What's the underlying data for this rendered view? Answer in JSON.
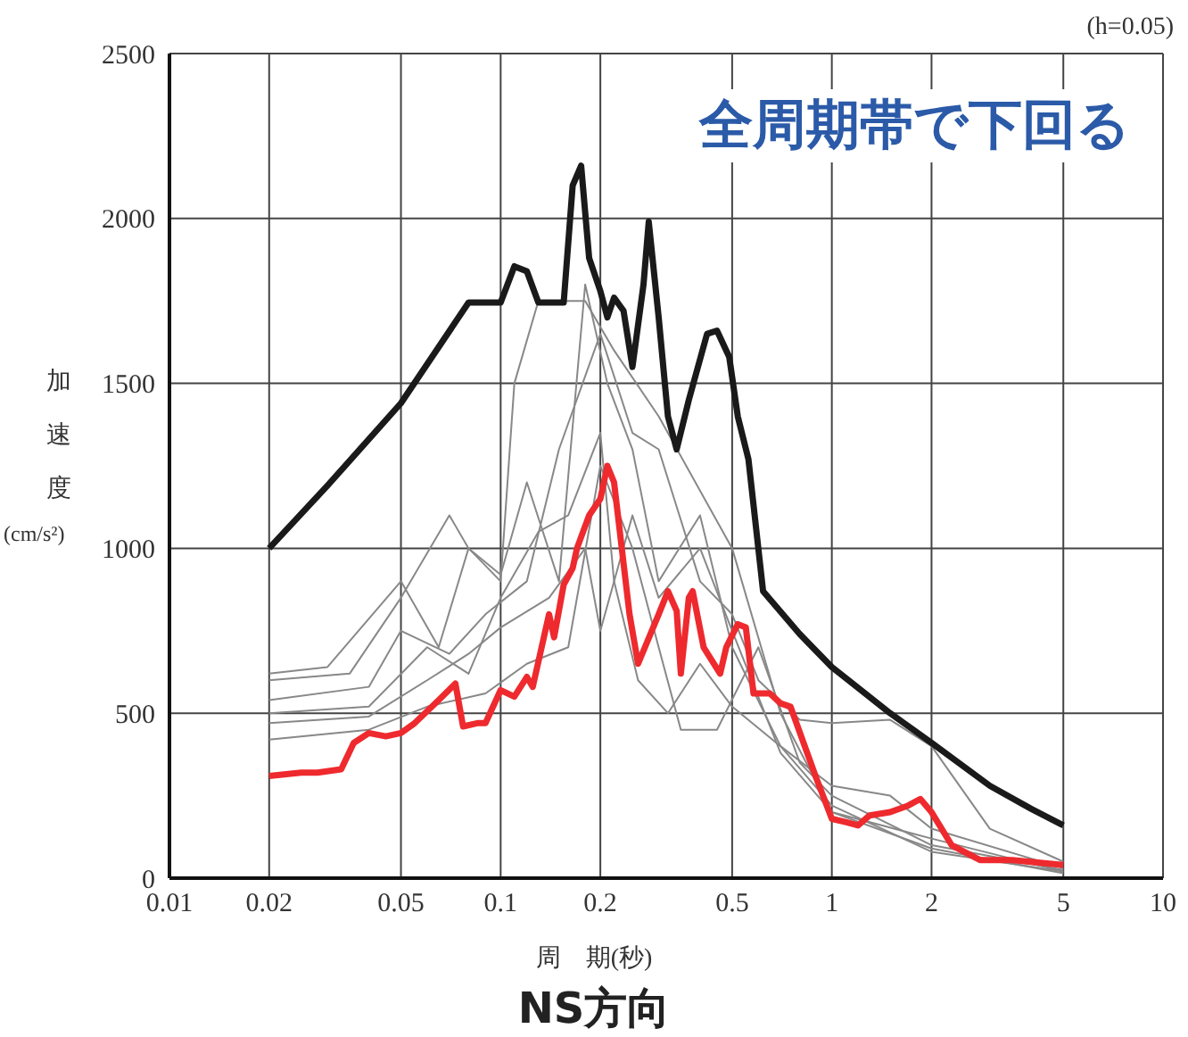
{
  "chart_data": {
    "type": "line",
    "title": "NS方向",
    "xlabel": "周　期(秒)",
    "ylabel": "加速度(cm/s²)",
    "annotations": [
      "(h=0.05)",
      "全周期帯で下回る"
    ],
    "log": "x",
    "grid": true,
    "marker": "none",
    "line_style": "solid",
    "xlim": [
      0.01,
      10
    ],
    "xticks": [
      0.01,
      0.02,
      0.05,
      0.1,
      0.2,
      0.5,
      1,
      2,
      5,
      10
    ],
    "ylim": [
      0,
      2500
    ],
    "yticks": [
      0,
      500,
      1000,
      1500,
      2000,
      2500
    ],
    "series": [
      {
        "color": "#888888",
        "x": [
          0.02,
          0.03,
          0.05,
          0.065,
          0.08,
          0.1,
          0.11,
          0.13,
          0.18,
          0.22,
          0.3,
          0.5,
          0.7,
          1,
          2,
          5
        ],
        "values": [
          620,
          640,
          900,
          700,
          1000,
          900,
          1500,
          1750,
          1750,
          1600,
          1400,
          1000,
          500,
          200,
          120,
          20
        ]
      },
      {
        "color": "#888888",
        "x": [
          0.02,
          0.035,
          0.05,
          0.07,
          0.08,
          0.1,
          0.12,
          0.15,
          0.18,
          0.21,
          0.25,
          0.3,
          0.4,
          0.5,
          0.7,
          1,
          1.5,
          2,
          5
        ],
        "values": [
          600,
          620,
          850,
          1100,
          1000,
          920,
          1200,
          900,
          1800,
          1500,
          1300,
          900,
          1100,
          700,
          400,
          280,
          250,
          150,
          30
        ]
      },
      {
        "color": "#888888",
        "x": [
          0.02,
          0.04,
          0.05,
          0.07,
          0.09,
          0.12,
          0.15,
          0.2,
          0.25,
          0.3,
          0.4,
          0.5,
          0.6,
          0.8,
          1,
          1.5,
          2,
          3,
          5
        ],
        "values": [
          540,
          580,
          750,
          680,
          800,
          900,
          1300,
          1650,
          1350,
          1300,
          900,
          800,
          600,
          480,
          470,
          480,
          400,
          150,
          50
        ]
      },
      {
        "color": "#888888",
        "x": [
          0.02,
          0.04,
          0.06,
          0.08,
          0.1,
          0.13,
          0.16,
          0.2,
          0.22,
          0.26,
          0.32,
          0.4,
          0.5,
          0.7,
          1,
          2,
          5
        ],
        "values": [
          500,
          520,
          700,
          620,
          850,
          1050,
          1100,
          1350,
          900,
          600,
          500,
          650,
          520,
          400,
          220,
          80,
          20
        ]
      },
      {
        "color": "#888888",
        "x": [
          0.02,
          0.04,
          0.06,
          0.08,
          0.1,
          0.14,
          0.18,
          0.2,
          0.25,
          0.3,
          0.4,
          0.5,
          0.7,
          1,
          2,
          5
        ],
        "values": [
          470,
          490,
          600,
          680,
          760,
          850,
          1000,
          750,
          1100,
          850,
          1000,
          750,
          380,
          200,
          90,
          15
        ]
      },
      {
        "color": "#888888",
        "x": [
          0.02,
          0.04,
          0.06,
          0.09,
          0.12,
          0.16,
          0.2,
          0.25,
          0.3,
          0.35,
          0.45,
          0.6,
          0.8,
          1,
          2,
          5
        ],
        "values": [
          420,
          450,
          520,
          560,
          650,
          700,
          1250,
          1000,
          700,
          450,
          450,
          700,
          350,
          250,
          100,
          25
        ]
      },
      {
        "color": "#1a1a1a",
        "x": [
          0.02,
          0.03,
          0.05,
          0.08,
          0.1,
          0.11,
          0.12,
          0.13,
          0.155,
          0.165,
          0.175,
          0.185,
          0.2,
          0.21,
          0.22,
          0.235,
          0.25,
          0.27,
          0.28,
          0.3,
          0.32,
          0.34,
          0.37,
          0.42,
          0.45,
          0.49,
          0.52,
          0.56,
          0.62,
          0.8,
          1,
          1.5,
          2,
          3,
          4,
          5
        ],
        "values": [
          1000,
          1190,
          1440,
          1745,
          1745,
          1855,
          1840,
          1745,
          1745,
          2100,
          2160,
          1880,
          1780,
          1700,
          1760,
          1720,
          1550,
          1800,
          1990,
          1700,
          1400,
          1300,
          1450,
          1650,
          1660,
          1580,
          1400,
          1270,
          870,
          740,
          640,
          500,
          410,
          280,
          210,
          160
        ]
      },
      {
        "color": "#ee2a2e",
        "x": [
          0.02,
          0.025,
          0.028,
          0.033,
          0.036,
          0.04,
          0.045,
          0.05,
          0.055,
          0.065,
          0.073,
          0.077,
          0.085,
          0.09,
          0.1,
          0.11,
          0.12,
          0.125,
          0.14,
          0.145,
          0.155,
          0.165,
          0.17,
          0.185,
          0.2,
          0.21,
          0.22,
          0.245,
          0.26,
          0.3,
          0.32,
          0.34,
          0.35,
          0.37,
          0.38,
          0.41,
          0.46,
          0.48,
          0.52,
          0.55,
          0.58,
          0.65,
          0.7,
          0.75,
          0.9,
          1,
          1.1,
          1.2,
          1.3,
          1.5,
          1.7,
          1.85,
          2,
          2.3,
          2.8,
          3.5,
          5
        ],
        "values": [
          310,
          320,
          320,
          330,
          410,
          440,
          430,
          440,
          470,
          540,
          590,
          460,
          470,
          470,
          570,
          550,
          610,
          580,
          800,
          730,
          890,
          940,
          1000,
          1100,
          1150,
          1250,
          1200,
          800,
          650,
          800,
          870,
          810,
          620,
          850,
          870,
          700,
          620,
          700,
          770,
          760,
          560,
          560,
          530,
          520,
          300,
          180,
          170,
          160,
          190,
          200,
          220,
          240,
          200,
          100,
          55,
          55,
          40
        ]
      }
    ]
  }
}
